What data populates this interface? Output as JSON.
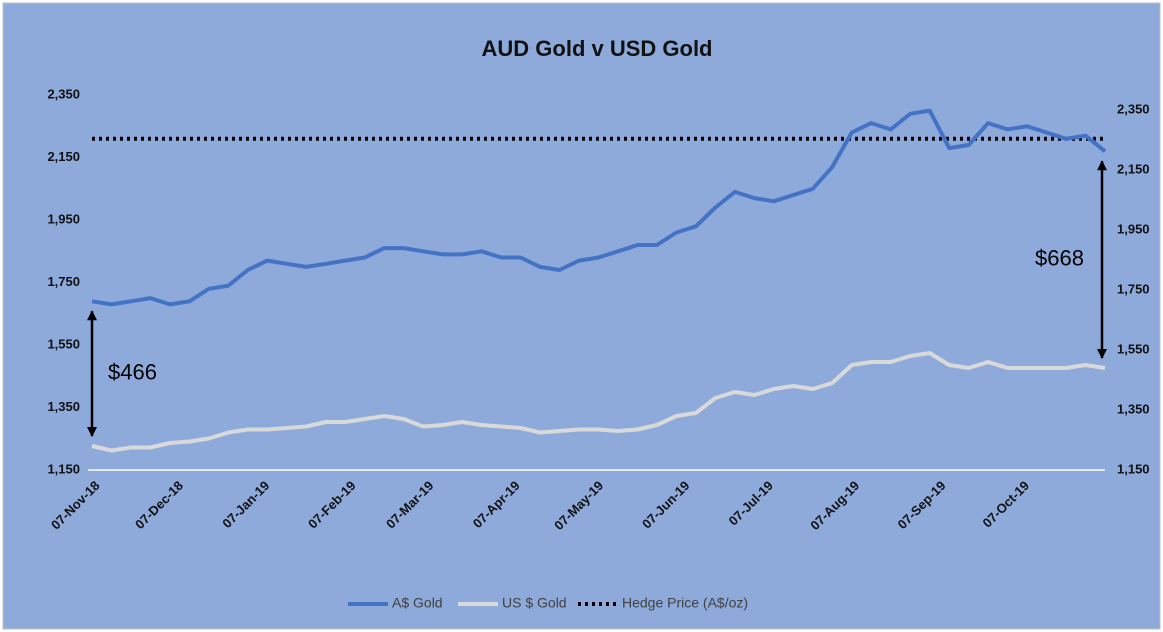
{
  "chart_data": {
    "type": "line",
    "title": "AUD Gold v USD Gold",
    "x": [
      "07-Nov-18",
      "14-Nov-18",
      "21-Nov-18",
      "28-Nov-18",
      "05-Dec-18",
      "12-Dec-18",
      "19-Dec-18",
      "26-Dec-18",
      "02-Jan-19",
      "09-Jan-19",
      "16-Jan-19",
      "23-Jan-19",
      "30-Jan-19",
      "06-Feb-19",
      "13-Feb-19",
      "20-Feb-19",
      "27-Feb-19",
      "06-Mar-19",
      "13-Mar-19",
      "20-Mar-19",
      "27-Mar-19",
      "03-Apr-19",
      "10-Apr-19",
      "17-Apr-19",
      "24-Apr-19",
      "01-May-19",
      "08-May-19",
      "15-May-19",
      "22-May-19",
      "29-May-19",
      "05-Jun-19",
      "12-Jun-19",
      "19-Jun-19",
      "26-Jun-19",
      "03-Jul-19",
      "10-Jul-19",
      "17-Jul-19",
      "24-Jul-19",
      "31-Jul-19",
      "07-Aug-19",
      "14-Aug-19",
      "21-Aug-19",
      "28-Aug-19",
      "04-Sep-19",
      "11-Sep-19",
      "18-Sep-19",
      "25-Sep-19",
      "02-Oct-19",
      "09-Oct-19",
      "16-Oct-19",
      "23-Oct-19",
      "30-Oct-19",
      "06-Nov-19"
    ],
    "series": [
      {
        "name": "A$ Gold",
        "color": "#4472c4",
        "values": [
          1690,
          1680,
          1690,
          1700,
          1680,
          1690,
          1730,
          1740,
          1790,
          1820,
          1810,
          1800,
          1810,
          1820,
          1830,
          1860,
          1860,
          1850,
          1840,
          1840,
          1850,
          1830,
          1830,
          1800,
          1790,
          1820,
          1830,
          1850,
          1870,
          1870,
          1910,
          1930,
          1990,
          2040,
          2020,
          2010,
          2030,
          2050,
          2120,
          2230,
          2260,
          2240,
          2290,
          2300,
          2180,
          2190,
          2260,
          2240,
          2250,
          2230,
          2210,
          2220,
          2170
        ]
      },
      {
        "name": "US $ Gold",
        "color": "#d9d9d9",
        "axis": "y2",
        "values": [
          1230,
          1215,
          1225,
          1225,
          1240,
          1245,
          1255,
          1275,
          1285,
          1285,
          1290,
          1295,
          1310,
          1310,
          1320,
          1330,
          1320,
          1295,
          1300,
          1310,
          1300,
          1295,
          1290,
          1275,
          1280,
          1285,
          1285,
          1280,
          1285,
          1300,
          1330,
          1340,
          1390,
          1410,
          1400,
          1420,
          1430,
          1420,
          1440,
          1500,
          1510,
          1510,
          1530,
          1540,
          1500,
          1490,
          1510,
          1490,
          1490,
          1490,
          1490,
          1500,
          1490
        ]
      }
    ],
    "reference_line": {
      "name": "Hedge Price (A$/oz)",
      "value": 2210,
      "color": "#000000"
    },
    "annotations": [
      {
        "text": "$466",
        "x": "07-Nov-18"
      },
      {
        "text": "$668",
        "x": "06-Nov-19"
      }
    ],
    "xticks": [
      "07-Nov-18",
      "07-Dec-18",
      "07-Jan-19",
      "07-Feb-19",
      "07-Mar-19",
      "07-Apr-19",
      "07-May-19",
      "07-Jun-19",
      "07-Jul-19",
      "07-Aug-19",
      "07-Sep-19",
      "07-Oct-19"
    ],
    "ylim": [
      1150,
      2350
    ],
    "yticks": [
      {
        "value": 1150,
        "label": "1,150"
      },
      {
        "value": 1350,
        "label": "1,350"
      },
      {
        "value": 1550,
        "label": "1,550"
      },
      {
        "value": 1750,
        "label": "1,750"
      },
      {
        "value": 1950,
        "label": "1,950"
      },
      {
        "value": 2150,
        "label": "2,150"
      },
      {
        "value": 2350,
        "label": "2,350"
      }
    ],
    "y2lim": [
      1150,
      2400
    ],
    "y2ticks": [
      {
        "value": 1150,
        "label": "1,150"
      },
      {
        "value": 1350,
        "label": "1,350"
      },
      {
        "value": 1550,
        "label": "1,550"
      },
      {
        "value": 1750,
        "label": "1,750"
      },
      {
        "value": 1950,
        "label": "1,950"
      },
      {
        "value": 2150,
        "label": "2,150"
      },
      {
        "value": 2350,
        "label": "2,350"
      }
    ]
  }
}
